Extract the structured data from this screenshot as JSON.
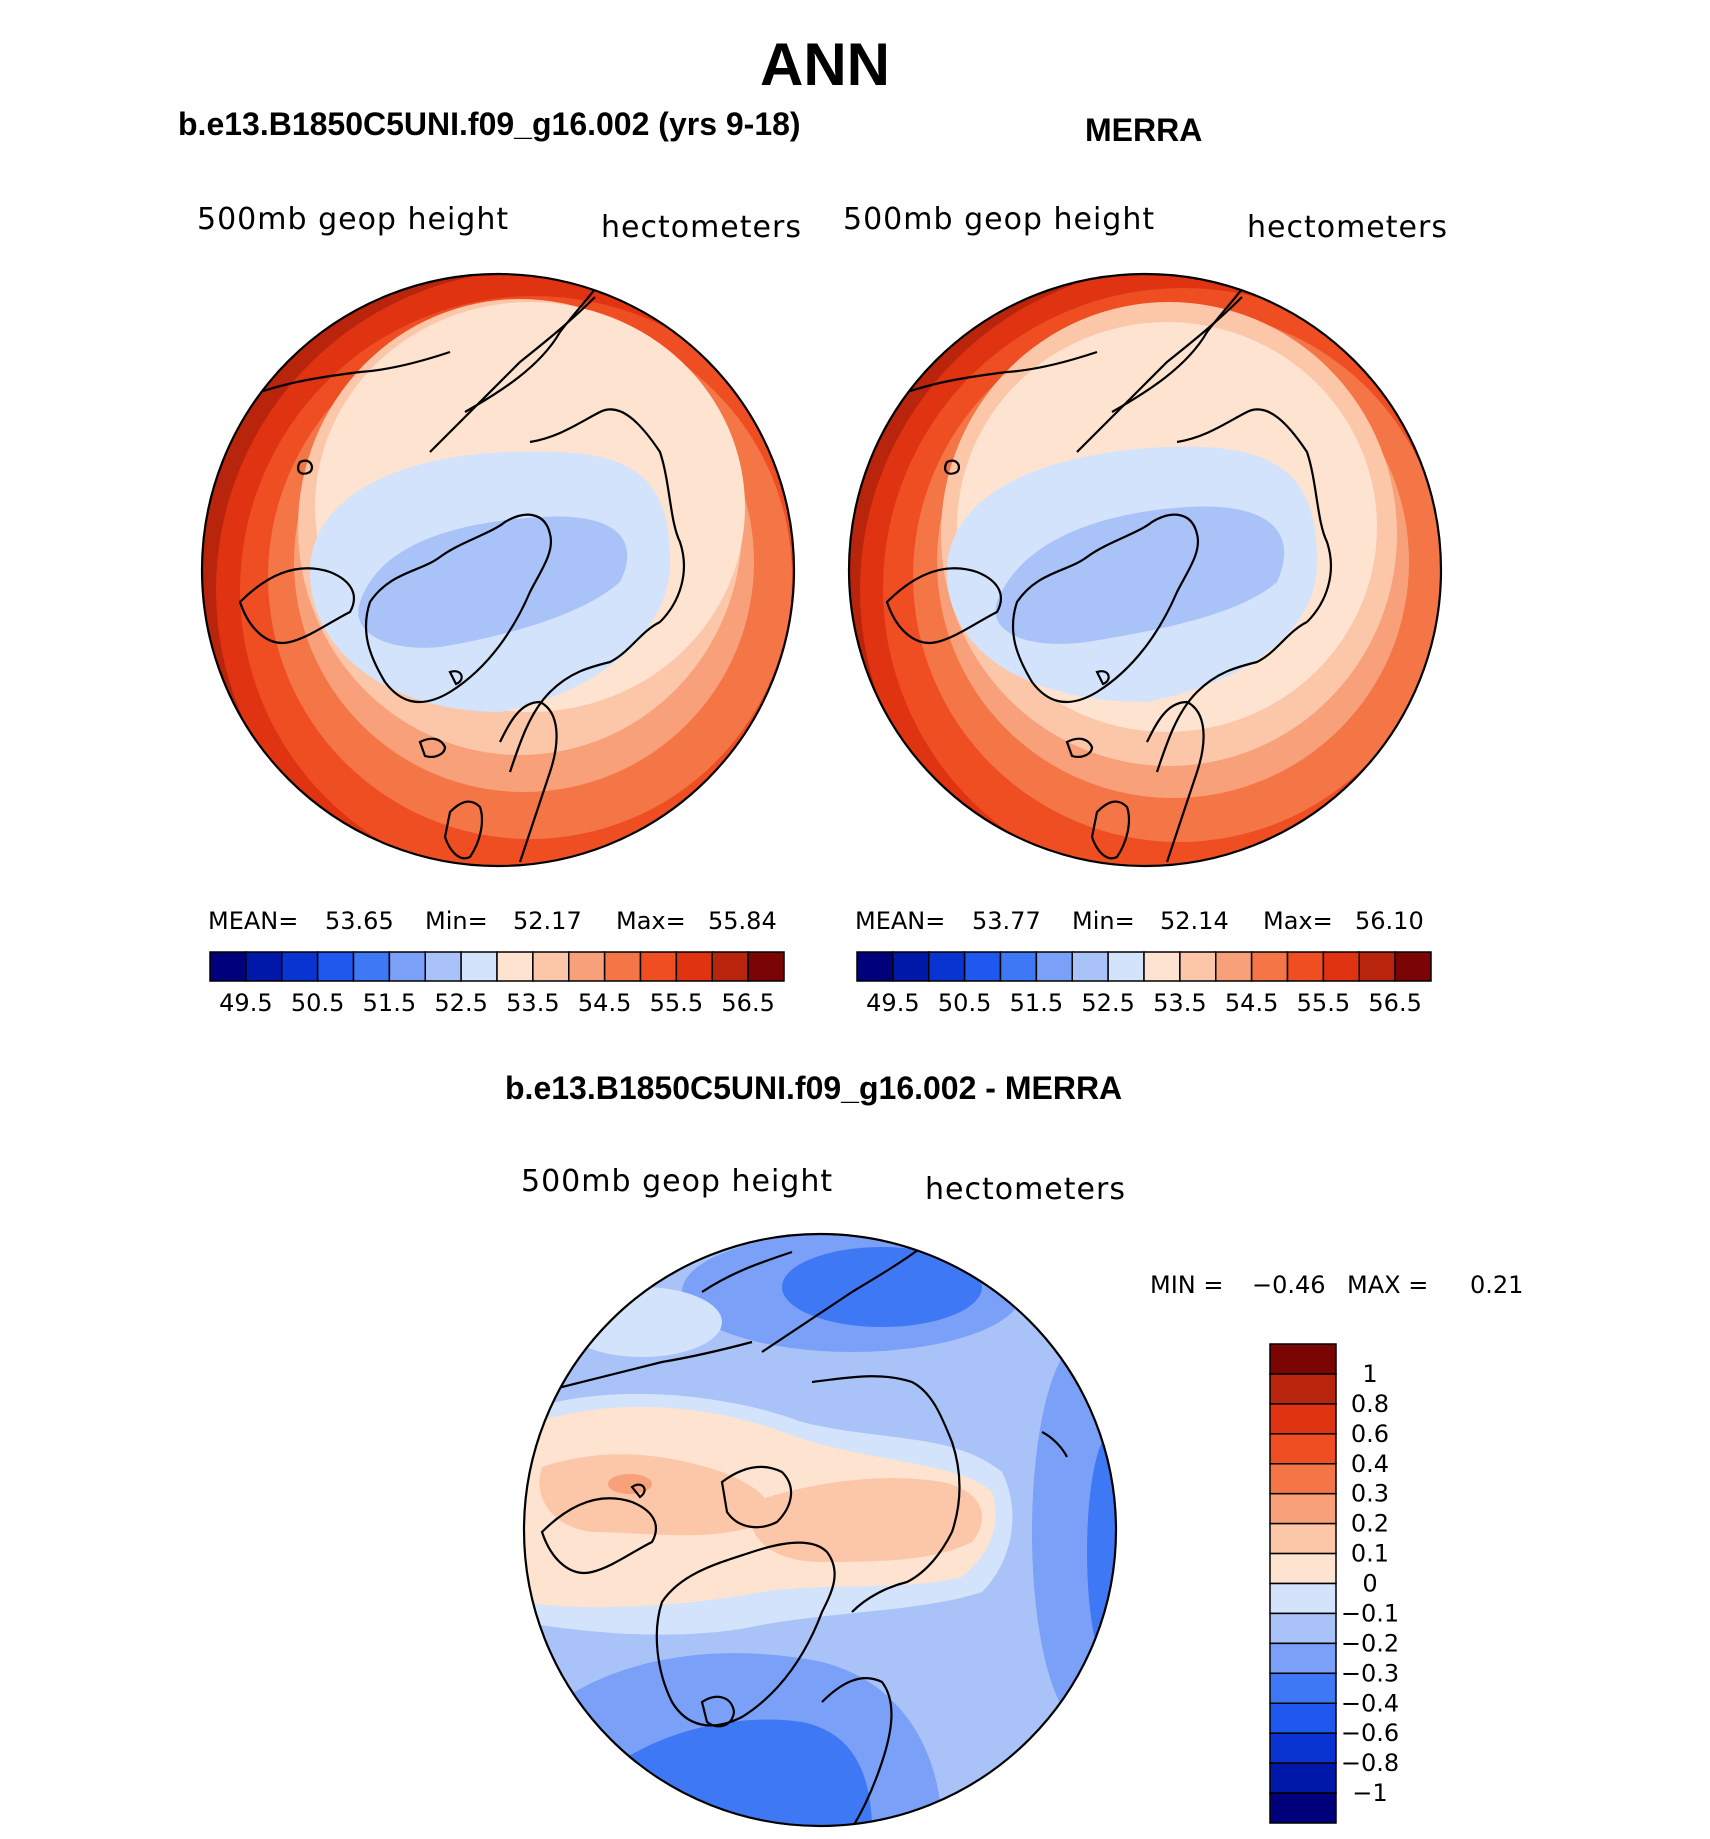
{
  "title": "ANN",
  "panels": [
    {
      "case_title": "b.e13.B1850C5UNI.f09_g16.002 (yrs 9-18)",
      "field": "500mb geop height",
      "units": "hectometers",
      "stats": {
        "mean_label": "MEAN=",
        "mean": "53.65",
        "min_label": "Min=",
        "min": "52.17",
        "max_label": "Max=",
        "max": "55.84"
      }
    },
    {
      "case_title": "MERRA",
      "field": "500mb geop height",
      "units": "hectometers",
      "stats": {
        "mean_label": "MEAN=",
        "mean": "53.77",
        "min_label": "Min=",
        "min": "52.14",
        "max_label": "Max=",
        "max": "56.10"
      }
    }
  ],
  "diff": {
    "title": "b.e13.B1850C5UNI.f09_g16.002 - MERRA",
    "field": "500mb geop height",
    "units": "hectometers",
    "stats": {
      "min_label": "MIN =",
      "min": "−0.46",
      "max_label": "MAX =",
      "max": "0.21"
    }
  },
  "colors": {
    "abs_scale": [
      "#00007a",
      "#0018a8",
      "#0a34d2",
      "#1f58ef",
      "#3f78f5",
      "#7ba0f7",
      "#a9c3f8",
      "#d2e3fb",
      "#fde3d0",
      "#fcc6a8",
      "#f8a07a",
      "#f47546",
      "#ef4d22",
      "#df3312",
      "#b8240c",
      "#7a0504"
    ],
    "diff_scale": [
      "#00007a",
      "#0018a8",
      "#0a34d2",
      "#1f58ef",
      "#3f78f5",
      "#7ba0f7",
      "#a9c3f8",
      "#d2e3fb",
      "#fde3d0",
      "#fcc6a8",
      "#f8a07a",
      "#f47546",
      "#ef4d22",
      "#df3312",
      "#b8240c",
      "#7a0504"
    ]
  },
  "chart_data": [
    {
      "type": "heatmap",
      "projection": "polar stereographic (northern hemisphere)",
      "title": "b.e13.B1850C5UNI.f09_g16.002 (yrs 9-18)",
      "variable": "500mb geop height",
      "units": "hectometers",
      "mean": 53.65,
      "min": 52.17,
      "max": 55.84,
      "contour_levels": [
        49.5,
        50.0,
        50.5,
        51.0,
        51.5,
        52.0,
        52.5,
        53.0,
        53.5,
        54.0,
        54.5,
        55.0,
        55.5,
        56.0,
        56.5
      ],
      "colorbar_tick_labels": [
        "49.5",
        "50.5",
        "51.5",
        "52.5",
        "53.5",
        "54.5",
        "55.5",
        "56.5"
      ]
    },
    {
      "type": "heatmap",
      "projection": "polar stereographic (northern hemisphere)",
      "title": "MERRA",
      "variable": "500mb geop height",
      "units": "hectometers",
      "mean": 53.77,
      "min": 52.14,
      "max": 56.1,
      "contour_levels": [
        49.5,
        50.0,
        50.5,
        51.0,
        51.5,
        52.0,
        52.5,
        53.0,
        53.5,
        54.0,
        54.5,
        55.0,
        55.5,
        56.0,
        56.5
      ],
      "colorbar_tick_labels": [
        "49.5",
        "50.5",
        "51.5",
        "52.5",
        "53.5",
        "54.5",
        "55.5",
        "56.5"
      ]
    },
    {
      "type": "heatmap",
      "projection": "polar stereographic (northern hemisphere)",
      "title": "b.e13.B1850C5UNI.f09_g16.002 - MERRA",
      "variable": "500mb geop height",
      "units": "hectometers",
      "min": -0.46,
      "max": 0.21,
      "contour_levels": [
        -1,
        -0.8,
        -0.6,
        -0.4,
        -0.3,
        -0.2,
        -0.1,
        0,
        0.1,
        0.2,
        0.3,
        0.4,
        0.6,
        0.8,
        1
      ],
      "colorbar_tick_labels": [
        "1",
        "0.8",
        "0.6",
        "0.4",
        "0.3",
        "0.2",
        "0.1",
        "0",
        "−0.1",
        "−0.2",
        "−0.3",
        "−0.4",
        "−0.6",
        "−0.8",
        "−1"
      ]
    }
  ]
}
